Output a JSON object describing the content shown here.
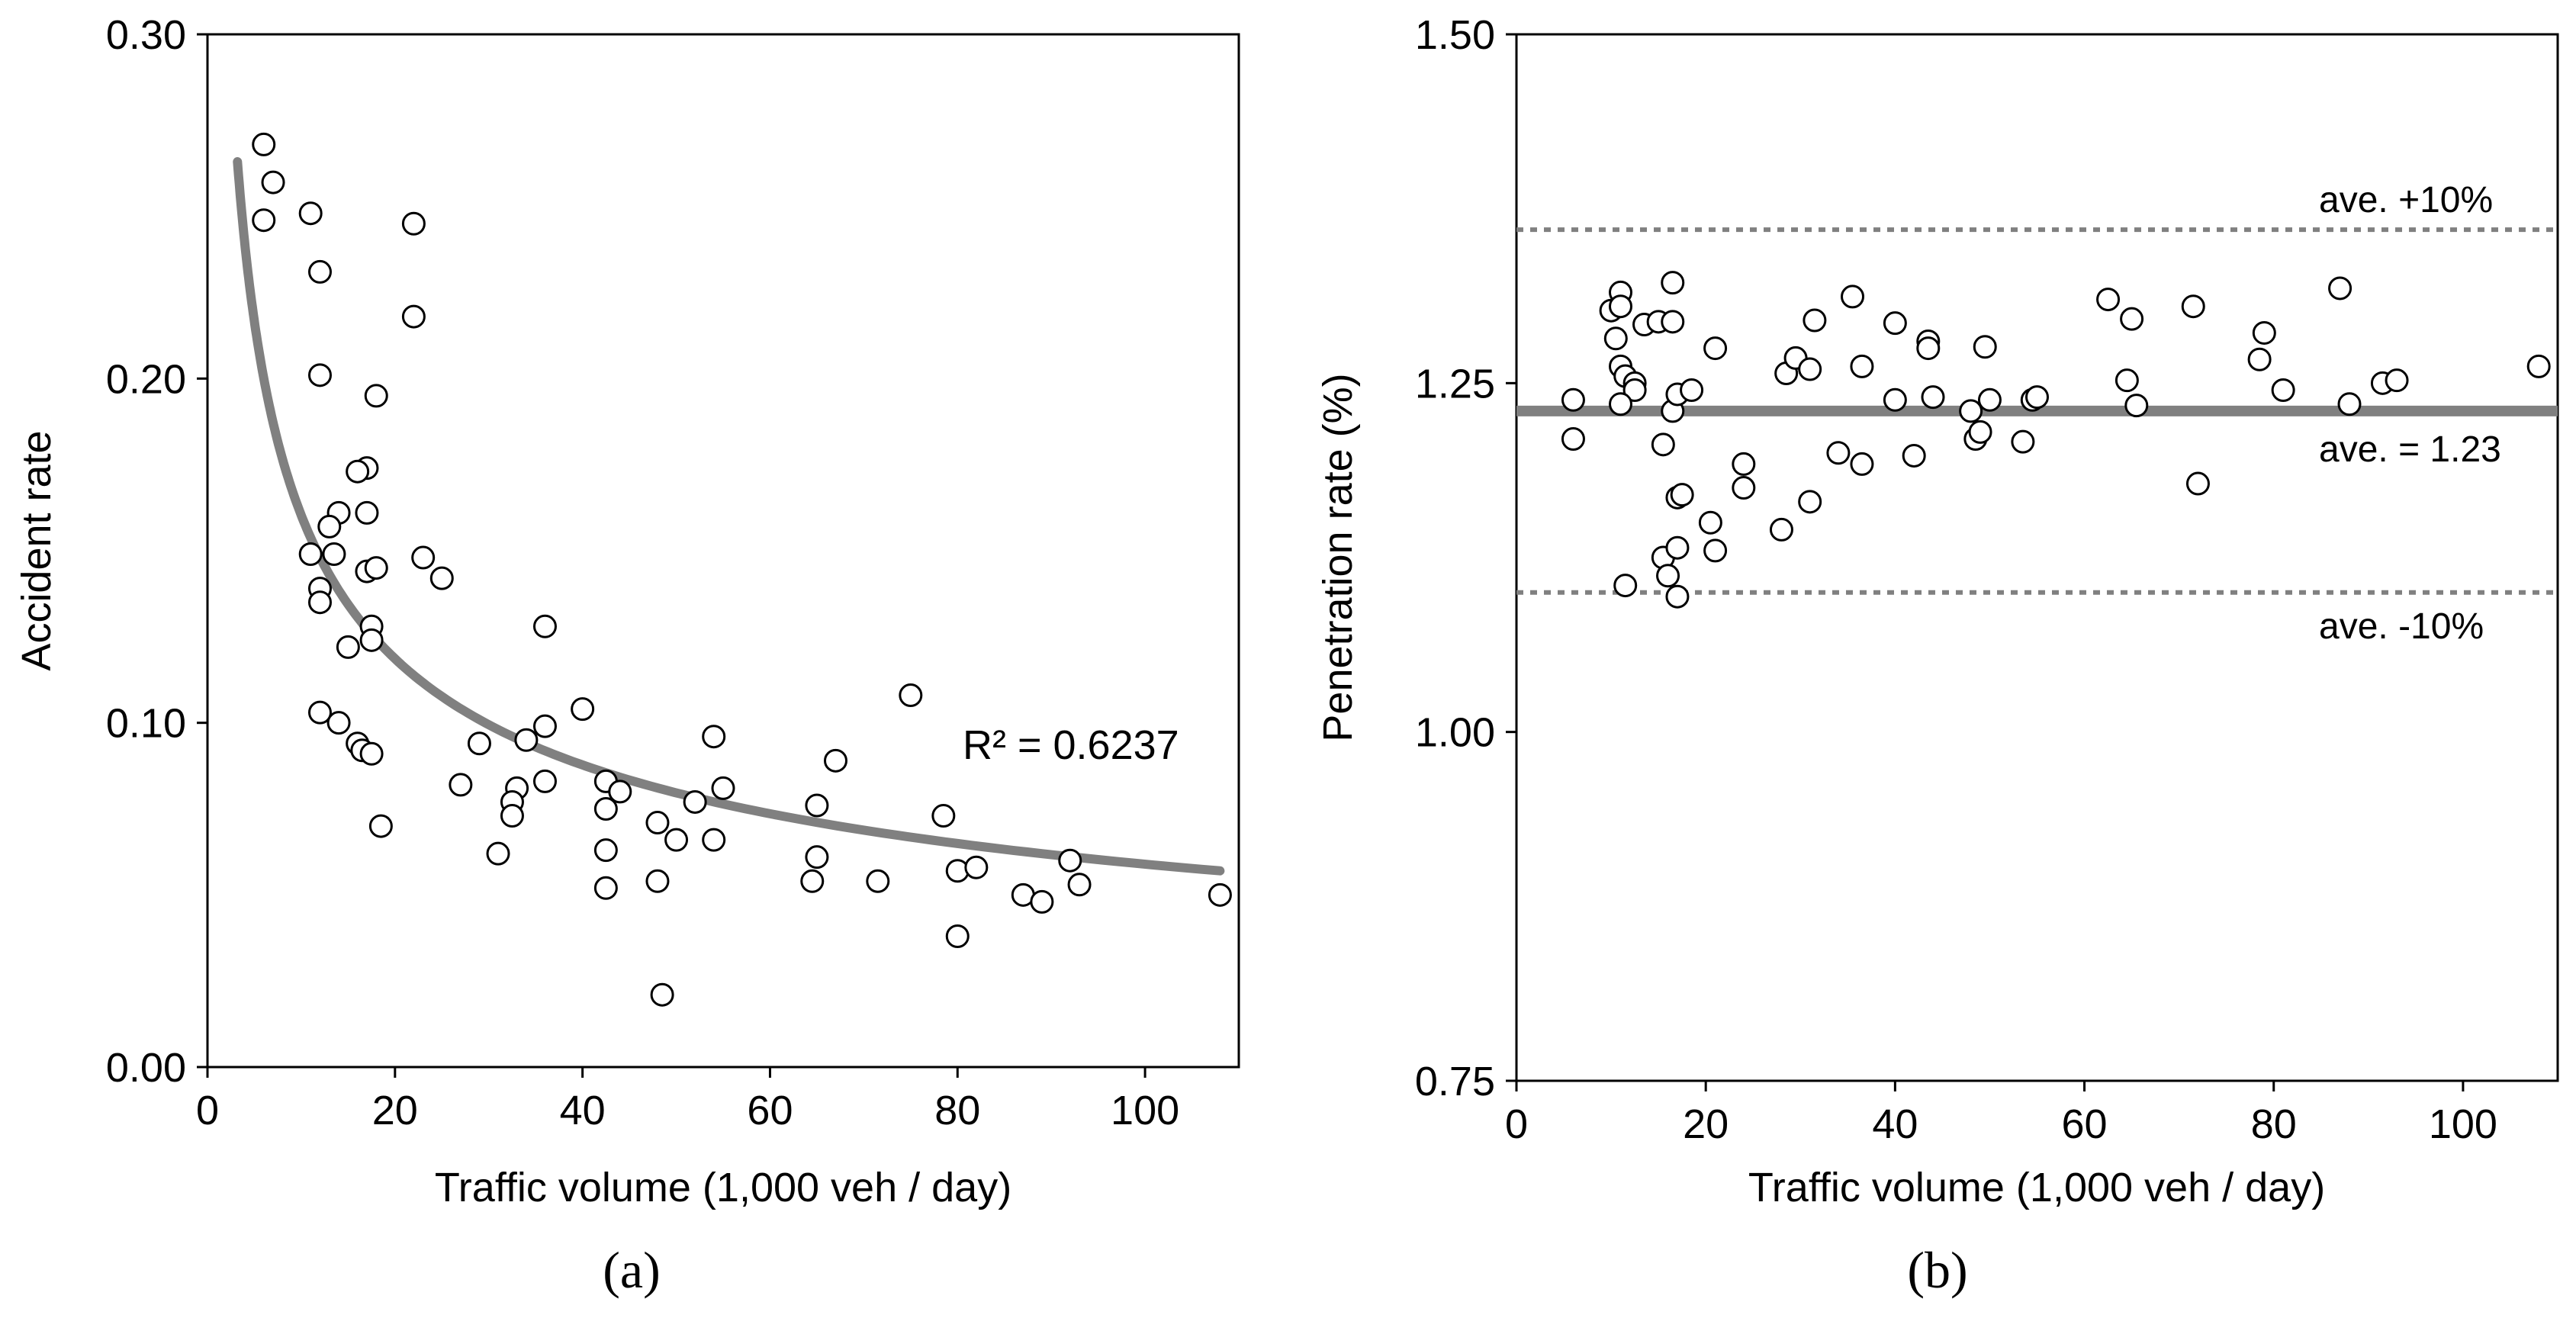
{
  "chart_data": [
    {
      "type": "scatter",
      "panel_label": "(a)",
      "xlabel": "Traffic volume (1,000 veh / day)",
      "ylabel": "Accident rate",
      "xlim": [
        0,
        110
      ],
      "ylim": [
        0,
        0.3
      ],
      "xticks": [
        0,
        20,
        40,
        60,
        80,
        100
      ],
      "yticks": [
        0.0,
        0.1,
        0.2,
        0.3
      ],
      "xtick_labels": [
        "0",
        "20",
        "40",
        "60",
        "80",
        "100"
      ],
      "ytick_labels": [
        "0.00",
        "0.10",
        "0.20",
        "0.30"
      ],
      "trend": {
        "type": "power",
        "label": "R² = 0.6237",
        "x_start": 3.2,
        "x_end": 108
      },
      "marker_color": "#000000",
      "trend_color": "#808080",
      "points": [
        [
          6,
          0.268
        ],
        [
          7,
          0.257
        ],
        [
          6,
          0.246
        ],
        [
          11,
          0.248
        ],
        [
          12,
          0.231
        ],
        [
          22,
          0.245
        ],
        [
          22,
          0.218
        ],
        [
          12,
          0.201
        ],
        [
          18,
          0.195
        ],
        [
          17,
          0.174
        ],
        [
          16,
          0.173
        ],
        [
          17,
          0.161
        ],
        [
          14,
          0.161
        ],
        [
          13,
          0.157
        ],
        [
          11,
          0.149
        ],
        [
          13.5,
          0.149
        ],
        [
          23,
          0.148
        ],
        [
          17,
          0.144
        ],
        [
          18,
          0.145
        ],
        [
          25,
          0.142
        ],
        [
          12,
          0.139
        ],
        [
          12,
          0.135
        ],
        [
          36,
          0.128
        ],
        [
          17.5,
          0.128
        ],
        [
          17.5,
          0.124
        ],
        [
          15,
          0.122
        ],
        [
          40,
          0.104
        ],
        [
          12,
          0.103
        ],
        [
          14,
          0.1
        ],
        [
          36,
          0.099
        ],
        [
          34,
          0.095
        ],
        [
          29,
          0.094
        ],
        [
          16,
          0.094
        ],
        [
          16.5,
          0.092
        ],
        [
          17.5,
          0.091
        ],
        [
          54,
          0.096
        ],
        [
          67,
          0.089
        ],
        [
          75,
          0.108
        ],
        [
          27,
          0.082
        ],
        [
          33,
          0.081
        ],
        [
          36,
          0.083
        ],
        [
          42.5,
          0.083
        ],
        [
          44,
          0.08
        ],
        [
          55,
          0.081
        ],
        [
          32.5,
          0.077
        ],
        [
          32.5,
          0.073
        ],
        [
          42.5,
          0.075
        ],
        [
          52,
          0.077
        ],
        [
          65,
          0.076
        ],
        [
          48,
          0.071
        ],
        [
          18.5,
          0.07
        ],
        [
          50,
          0.066
        ],
        [
          54,
          0.066
        ],
        [
          78.5,
          0.073
        ],
        [
          31,
          0.062
        ],
        [
          42.5,
          0.063
        ],
        [
          65,
          0.061
        ],
        [
          92,
          0.06
        ],
        [
          80,
          0.057
        ],
        [
          82,
          0.058
        ],
        [
          42.5,
          0.052
        ],
        [
          48,
          0.054
        ],
        [
          64.5,
          0.054
        ],
        [
          71.5,
          0.054
        ],
        [
          87,
          0.05
        ],
        [
          89,
          0.048
        ],
        [
          93,
          0.053
        ],
        [
          108,
          0.05
        ],
        [
          80,
          0.038
        ],
        [
          48.5,
          0.021
        ]
      ]
    },
    {
      "type": "scatter",
      "panel_label": "(b)",
      "xlabel": "Traffic volume (1,000 veh / day)",
      "ylabel": "Penetration rate (%)",
      "xlim": [
        0,
        110
      ],
      "ylim": [
        0.75,
        1.5
      ],
      "xticks": [
        0,
        20,
        40,
        60,
        80,
        100
      ],
      "yticks": [
        0.75,
        1.0,
        1.25,
        1.5
      ],
      "xtick_labels": [
        "0",
        "20",
        "40",
        "60",
        "80",
        "100"
      ],
      "ytick_labels": [
        "0.75",
        "1.00",
        "1.25",
        "1.50"
      ],
      "average": {
        "value": 1.23,
        "label": "ave. = 1.23"
      },
      "upper_band": {
        "value": 1.36,
        "label": "ave. +10%"
      },
      "lower_band": {
        "value": 1.1,
        "label": "ave. -10%"
      },
      "marker_color": "#000000",
      "line_color": "#808080",
      "points": [
        [
          6,
          1.238
        ],
        [
          6,
          1.21
        ],
        [
          10,
          1.302
        ],
        [
          11,
          1.315
        ],
        [
          11,
          1.305
        ],
        [
          10.5,
          1.282
        ],
        [
          11,
          1.262
        ],
        [
          11.5,
          1.255
        ],
        [
          12.5,
          1.25
        ],
        [
          12.5,
          1.245
        ],
        [
          11,
          1.235
        ],
        [
          11.5,
          1.105
        ],
        [
          13.5,
          1.292
        ],
        [
          15,
          1.294
        ],
        [
          16.5,
          1.294
        ],
        [
          16.5,
          1.322
        ],
        [
          21,
          1.275
        ],
        [
          16.5,
          1.23
        ],
        [
          17,
          1.242
        ],
        [
          18.5,
          1.245
        ],
        [
          15.5,
          1.206
        ],
        [
          17,
          1.168
        ],
        [
          17.5,
          1.17
        ],
        [
          20.5,
          1.15
        ],
        [
          15.5,
          1.125
        ],
        [
          17,
          1.132
        ],
        [
          21,
          1.13
        ],
        [
          16,
          1.112
        ],
        [
          17,
          1.097
        ],
        [
          24,
          1.192
        ],
        [
          24,
          1.175
        ],
        [
          28,
          1.145
        ],
        [
          28.5,
          1.257
        ],
        [
          29.5,
          1.268
        ],
        [
          31,
          1.26
        ],
        [
          31.5,
          1.295
        ],
        [
          31,
          1.165
        ],
        [
          34,
          1.2
        ],
        [
          35.5,
          1.312
        ],
        [
          36.5,
          1.262
        ],
        [
          36.5,
          1.192
        ],
        [
          40,
          1.293
        ],
        [
          40,
          1.238
        ],
        [
          42,
          1.198
        ],
        [
          43.5,
          1.28
        ],
        [
          43.5,
          1.275
        ],
        [
          44,
          1.24
        ],
        [
          48,
          1.23
        ],
        [
          48.5,
          1.21
        ],
        [
          49,
          1.215
        ],
        [
          49.5,
          1.276
        ],
        [
          50,
          1.238
        ],
        [
          53.5,
          1.208
        ],
        [
          54.5,
          1.238
        ],
        [
          55,
          1.24
        ],
        [
          62.5,
          1.31
        ],
        [
          64.5,
          1.252
        ],
        [
          65,
          1.296
        ],
        [
          65.5,
          1.234
        ],
        [
          71.5,
          1.305
        ],
        [
          72,
          1.178
        ],
        [
          78.5,
          1.267
        ],
        [
          79,
          1.286
        ],
        [
          81,
          1.245
        ],
        [
          87,
          1.318
        ],
        [
          88,
          1.235
        ],
        [
          91.5,
          1.25
        ],
        [
          93,
          1.252
        ],
        [
          108,
          1.262
        ]
      ]
    }
  ]
}
